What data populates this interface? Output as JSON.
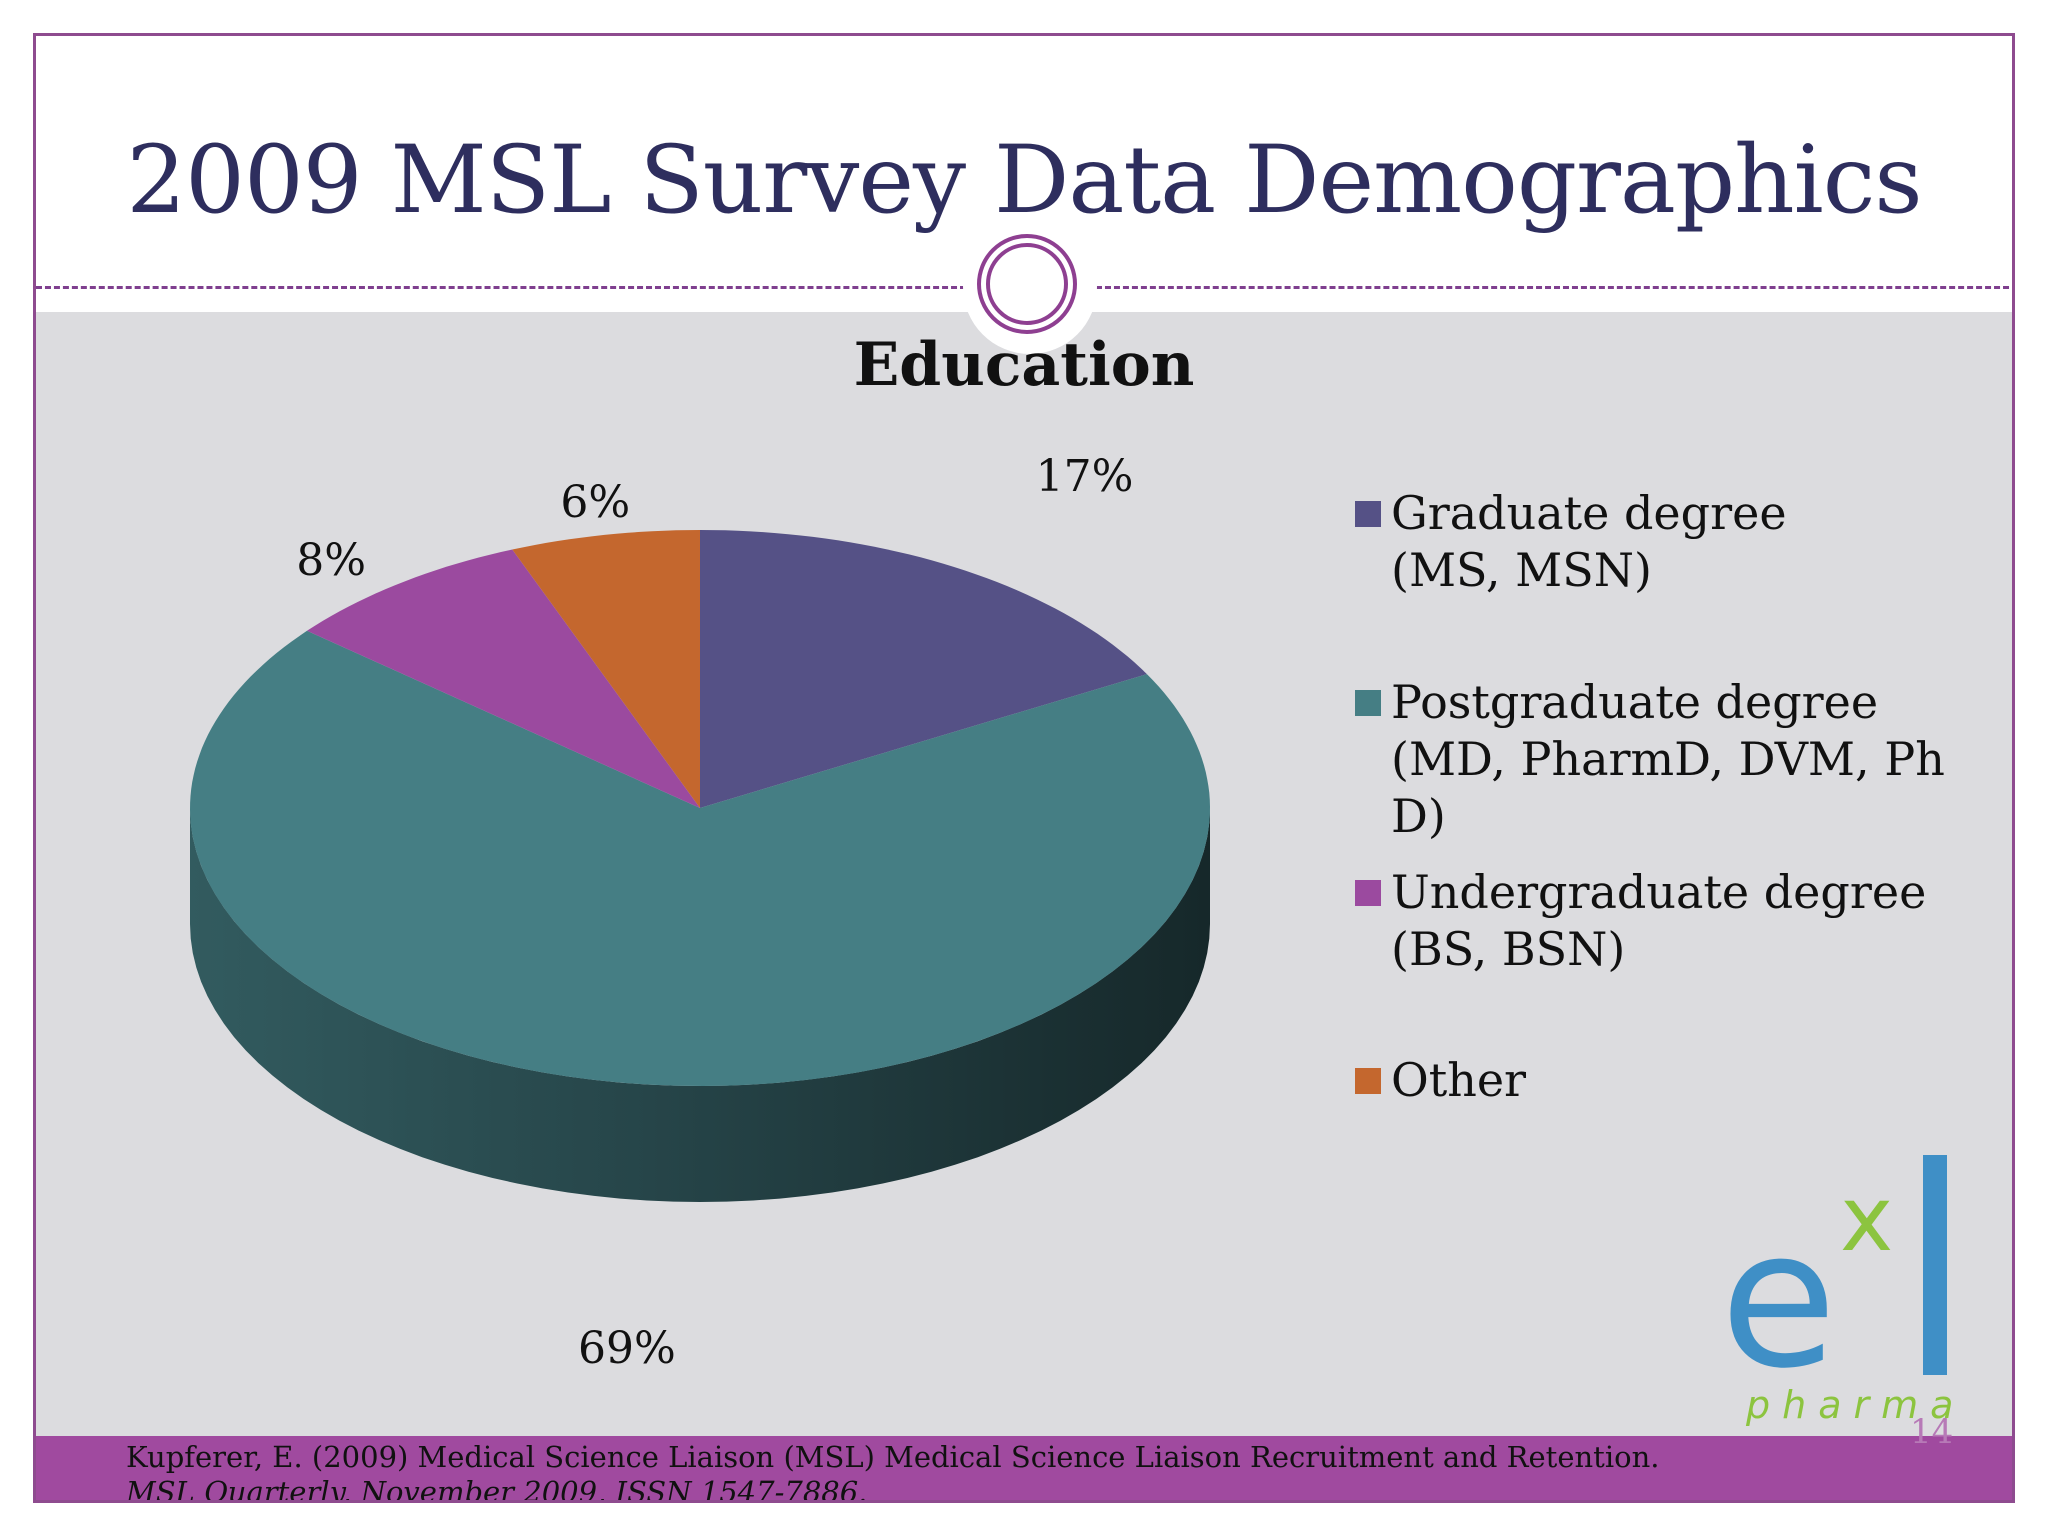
{
  "slide": {
    "title": "2009 MSL Survey Data Demographics",
    "citation_plain": "Kupferer, E. (2009) Medical Science Liaison (MSL) Medical Science Liaison Recruitment and Retention. ",
    "citation_italic": "MSL Quarterly, November 2009, ISSN 1547-7886.",
    "page_number": "14"
  },
  "logo": {
    "text": "exl pharma",
    "colors": {
      "blue": "#3f8fc6",
      "green": "#8cc43f"
    }
  },
  "chart_data": {
    "type": "pie",
    "style": "3d",
    "title": "Education",
    "legend_position": "right",
    "slices": [
      {
        "label": "Graduate degree\n(MS, MSN)",
        "value": 17,
        "display": "17%",
        "color": "#555186"
      },
      {
        "label": "Postgraduate degree\n(MD, PharmD, DVM, Ph\nD)",
        "value": 69,
        "display": "69%",
        "color": "#457e84"
      },
      {
        "label": "Undergraduate degree\n(BS, BSN)",
        "value": 8,
        "display": "8%",
        "color": "#9b4a9f"
      },
      {
        "label": "Other",
        "value": 6,
        "display": "6%",
        "color": "#c4672e"
      }
    ]
  }
}
